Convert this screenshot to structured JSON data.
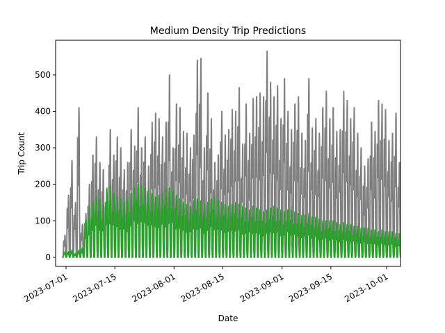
{
  "chart_data": {
    "type": "line",
    "title": "Medium Density Trip Predictions",
    "xlabel": "Date",
    "ylabel": "Trip Count",
    "x_ticks": [
      "2023-07-01",
      "2023-07-15",
      "2023-08-01",
      "2023-08-15",
      "2023-09-01",
      "2023-09-15",
      "2023-10-01"
    ],
    "y_ticks": [
      0,
      100,
      200,
      300,
      400,
      500
    ],
    "xlim": [
      "2023-06-28",
      "2023-10-05"
    ],
    "ylim": [
      -25,
      595
    ],
    "grid": false,
    "legend": "none",
    "series": [
      {
        "color": "#808080",
        "start_date": "2023-06-30",
        "daily_peaks": [
          60,
          170,
          265,
          150,
          410,
          90,
          120,
          200,
          280,
          330,
          260,
          240,
          190,
          350,
          280,
          330,
          300,
          240,
          260,
          350,
          305,
          410,
          300,
          330,
          250,
          370,
          395,
          380,
          330,
          370,
          500,
          300,
          420,
          410,
          345,
          340,
          300,
          335,
          540,
          545,
          300,
          450,
          380,
          260,
          280,
          400,
          335,
          350,
          405,
          400,
          465,
          310,
          420,
          340,
          435,
          440,
          450,
          440,
          565,
          480,
          440,
          470,
          380,
          490,
          400,
          350,
          420,
          440,
          340,
          320,
          490,
          355,
          380,
          340,
          410,
          455,
          380,
          410,
          345,
          350,
          455,
          430,
          380,
          410,
          340,
          300,
          250,
          270,
          370,
          345,
          430,
          420,
          405,
          320,
          340,
          395,
          260,
          430,
          425
        ],
        "line_width": 2
      },
      {
        "color": "#2ca02c",
        "start_date": "2023-06-30",
        "daily_peaks": [
          15,
          15,
          20,
          10,
          20,
          25,
          100,
          135,
          150,
          165,
          160,
          145,
          185,
          195,
          175,
          165,
          160,
          150,
          155,
          175,
          190,
          200,
          195,
          190,
          185,
          175,
          165,
          170,
          175,
          185,
          190,
          180,
          170,
          160,
          150,
          145,
          140,
          155,
          160,
          155,
          145,
          150,
          160,
          165,
          155,
          150,
          145,
          140,
          145,
          150,
          145,
          140,
          135,
          130,
          140,
          135,
          130,
          125,
          130,
          135,
          140,
          135,
          130,
          125,
          130,
          130,
          125,
          120,
          115,
          115,
          120,
          110,
          110,
          105,
          100,
          100,
          100,
          100,
          95,
          90,
          95,
          90,
          90,
          85,
          85,
          80,
          80,
          80,
          75,
          75,
          70,
          75,
          70,
          70,
          70,
          65,
          65,
          65,
          65
        ],
        "line_width": 2
      }
    ]
  }
}
